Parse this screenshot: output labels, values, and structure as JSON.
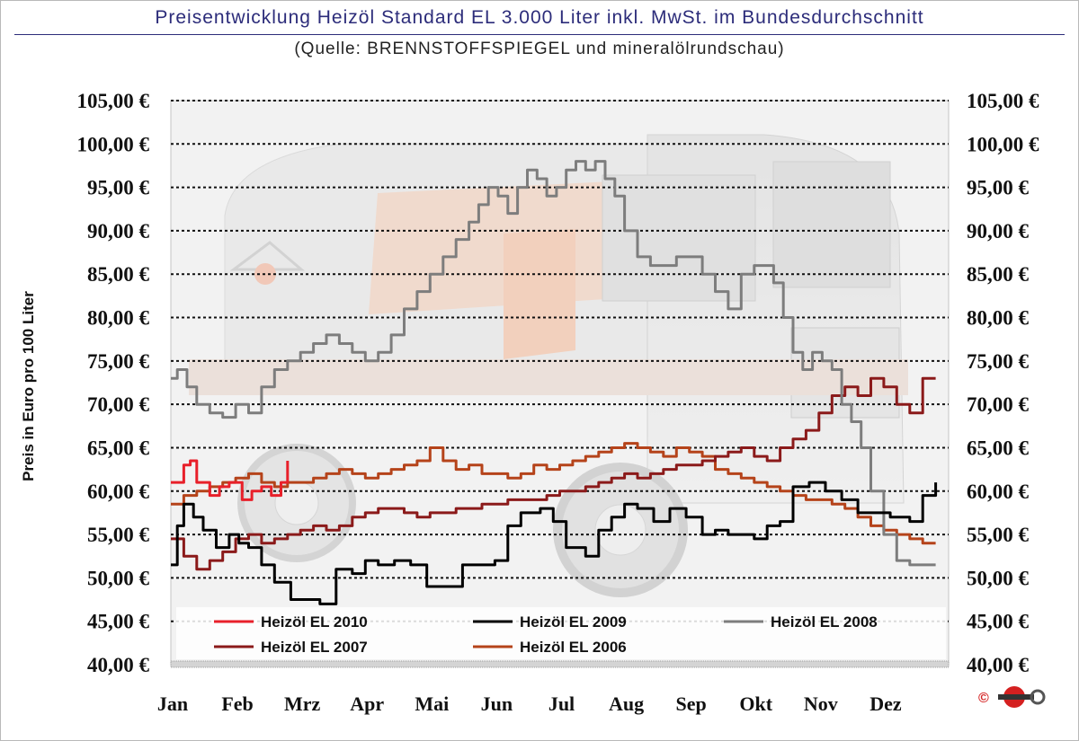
{
  "header": {
    "title": "Preisentwicklung Heizöl Standard EL 3.000 Liter inkl. MwSt. im Bundesdurchschnitt",
    "subtitle": "(Quelle: BRENNSTOFFSPIEGEL und mineralölrundschau)"
  },
  "footer": {
    "copyright_symbol": "©"
  },
  "chart_data": {
    "type": "line",
    "title": "Preisentwicklung Heizöl Standard EL 3.000 Liter inkl. MwSt. im Bundesdurchschnitt",
    "subtitle": "(Quelle: BRENNSTOFFSPIEGEL und mineralölrundschau)",
    "ylabel": "Preis in Euro pro 100 Liter",
    "xlabel": "",
    "ylim": [
      40,
      105
    ],
    "xlim": [
      0,
      12
    ],
    "grid": "horizontal dotted",
    "legend_position": "bottom",
    "y_ticks": [
      "105,00 €",
      "100,00 €",
      "95,00 €",
      "90,00 €",
      "85,00 €",
      "80,00 €",
      "75,00 €",
      "70,00 €",
      "65,00 €",
      "60,00 €",
      "55,00 €",
      "50,00 €",
      "45,00 €",
      "40,00 €"
    ],
    "y_tick_values": [
      105,
      100,
      95,
      90,
      85,
      80,
      75,
      70,
      65,
      60,
      55,
      50,
      45,
      40
    ],
    "categories": [
      "Jan",
      "Feb",
      "Mrz",
      "Apr",
      "Mai",
      "Jun",
      "Jul",
      "Aug",
      "Sep",
      "Okt",
      "Nov",
      "Dez"
    ],
    "series": [
      {
        "name": "Heizöl EL 2010",
        "color": "#e8202a",
        "x": [
          0,
          0.2,
          0.3,
          0.4,
          0.6,
          0.75,
          0.9,
          1.1,
          1.25,
          1.4,
          1.55,
          1.7,
          1.8
        ],
        "y": [
          61,
          63,
          63.5,
          61,
          59.5,
          60.5,
          61,
          59,
          60,
          60.5,
          59.5,
          61,
          63.5
        ]
      },
      {
        "name": "Heizöl EL 2009",
        "color": "#000000",
        "x": [
          0,
          0.1,
          0.2,
          0.35,
          0.5,
          0.7,
          0.9,
          1.05,
          1.2,
          1.4,
          1.6,
          1.85,
          2.1,
          2.3,
          2.55,
          2.8,
          3.0,
          3.2,
          3.45,
          3.7,
          3.95,
          4.2,
          4.5,
          4.75,
          5.0,
          5.2,
          5.4,
          5.55,
          5.7,
          5.9,
          6.1,
          6.4,
          6.6,
          6.8,
          7.0,
          7.2,
          7.45,
          7.7,
          7.95,
          8.2,
          8.4,
          8.6,
          8.8,
          9.0,
          9.2,
          9.4,
          9.6,
          9.85,
          10.1,
          10.35,
          10.6,
          10.85,
          11.1,
          11.4,
          11.6,
          11.8
        ],
        "y": [
          51.5,
          56,
          58.5,
          57,
          55.5,
          53.5,
          55,
          54,
          53.5,
          51.5,
          49.5,
          47.5,
          47.5,
          47,
          51,
          50.5,
          52,
          51.5,
          52,
          51.5,
          49,
          49,
          51.5,
          51.5,
          52,
          56,
          57.5,
          57.5,
          58,
          56.5,
          53.5,
          52.5,
          55.5,
          57,
          58.5,
          58,
          56.5,
          58,
          57,
          55,
          55.5,
          55,
          55,
          54.5,
          56,
          56.5,
          60.5,
          61,
          60,
          59,
          57.5,
          57.5,
          57,
          56.5,
          59.5,
          61
        ]
      },
      {
        "name": "Heizöl EL 2008",
        "color": "#7d7d7d",
        "x": [
          0,
          0.1,
          0.25,
          0.4,
          0.6,
          0.8,
          1.0,
          1.2,
          1.4,
          1.6,
          1.8,
          2.0,
          2.2,
          2.4,
          2.6,
          2.8,
          3.0,
          3.2,
          3.4,
          3.6,
          3.8,
          4.0,
          4.2,
          4.4,
          4.6,
          4.75,
          4.9,
          5.05,
          5.2,
          5.35,
          5.5,
          5.65,
          5.8,
          5.95,
          6.1,
          6.25,
          6.4,
          6.55,
          6.7,
          6.85,
          7.0,
          7.2,
          7.4,
          7.6,
          7.8,
          8.0,
          8.2,
          8.4,
          8.6,
          8.8,
          9.0,
          9.15,
          9.3,
          9.45,
          9.6,
          9.75,
          9.9,
          10.05,
          10.2,
          10.35,
          10.5,
          10.65,
          10.8,
          11.0,
          11.2,
          11.4,
          11.6,
          11.8
        ],
        "y": [
          73,
          74,
          72,
          70,
          69,
          68.5,
          70,
          69,
          72,
          74,
          75,
          76,
          77,
          78,
          77,
          76,
          75,
          76,
          78,
          81,
          83,
          85,
          87,
          89,
          91,
          93,
          95,
          94,
          92,
          95,
          97,
          96,
          94,
          95,
          97,
          98,
          97,
          98,
          96,
          94,
          90,
          87,
          86,
          86,
          87,
          87,
          85,
          83,
          81,
          85,
          86,
          86,
          84,
          80,
          76,
          74,
          76,
          75,
          74,
          70,
          68,
          65,
          60,
          55,
          52,
          51.5,
          51.5,
          51.5
        ]
      },
      {
        "name": "Heizöl EL 2007",
        "color": "#8b1a1a",
        "x": [
          0,
          0.2,
          0.4,
          0.6,
          0.8,
          1.0,
          1.2,
          1.4,
          1.6,
          1.8,
          2.0,
          2.2,
          2.4,
          2.6,
          2.8,
          3.0,
          3.2,
          3.4,
          3.6,
          3.8,
          4.0,
          4.2,
          4.4,
          4.6,
          4.8,
          5.0,
          5.2,
          5.4,
          5.6,
          5.8,
          6.0,
          6.2,
          6.4,
          6.6,
          6.8,
          7.0,
          7.2,
          7.4,
          7.6,
          7.8,
          8.0,
          8.2,
          8.4,
          8.6,
          8.8,
          9.0,
          9.2,
          9.4,
          9.6,
          9.8,
          10.0,
          10.2,
          10.4,
          10.6,
          10.8,
          11.0,
          11.2,
          11.4,
          11.6,
          11.8
        ],
        "y": [
          54.5,
          52.5,
          51,
          52,
          53,
          54.5,
          55,
          54,
          54.5,
          55,
          55.5,
          56,
          55.5,
          56,
          57,
          57.5,
          58,
          58,
          57.5,
          57,
          57.5,
          57.5,
          58,
          58,
          58.5,
          58.5,
          59,
          59,
          59,
          59.5,
          60,
          60,
          60.5,
          61,
          61.5,
          62,
          61.5,
          62,
          62.5,
          63,
          63,
          63.5,
          64,
          64.5,
          65,
          64,
          63.5,
          65,
          66,
          67,
          69,
          71,
          72,
          71,
          73,
          72,
          70,
          69,
          73,
          73
        ]
      },
      {
        "name": "Heizöl EL 2006",
        "color": "#b5431a",
        "x": [
          0,
          0.2,
          0.4,
          0.6,
          0.8,
          1.0,
          1.2,
          1.4,
          1.6,
          1.8,
          2.0,
          2.2,
          2.4,
          2.6,
          2.8,
          3.0,
          3.2,
          3.4,
          3.6,
          3.8,
          4.0,
          4.2,
          4.4,
          4.6,
          4.8,
          5.0,
          5.2,
          5.4,
          5.6,
          5.8,
          6.0,
          6.2,
          6.4,
          6.6,
          6.8,
          7.0,
          7.2,
          7.4,
          7.6,
          7.8,
          8.0,
          8.2,
          8.4,
          8.6,
          8.8,
          9.0,
          9.2,
          9.4,
          9.6,
          9.8,
          10.0,
          10.2,
          10.4,
          10.6,
          10.8,
          11.0,
          11.2,
          11.4,
          11.6,
          11.8
        ],
        "y": [
          58.5,
          59.5,
          60,
          60.5,
          61,
          61.5,
          62,
          61,
          60.5,
          61,
          61,
          61.5,
          62,
          62.5,
          62,
          61.5,
          62,
          62.5,
          63,
          63.5,
          65,
          63.5,
          62.5,
          63,
          62,
          62,
          61.5,
          62,
          63,
          62.5,
          63,
          63.5,
          64,
          64.5,
          65,
          65.5,
          65,
          64.5,
          64,
          65,
          64.5,
          64,
          62.5,
          62,
          61.5,
          61,
          60.5,
          60,
          59.5,
          59,
          59,
          58.5,
          58,
          57,
          56,
          55.5,
          55,
          54.5,
          54,
          54
        ]
      }
    ]
  }
}
